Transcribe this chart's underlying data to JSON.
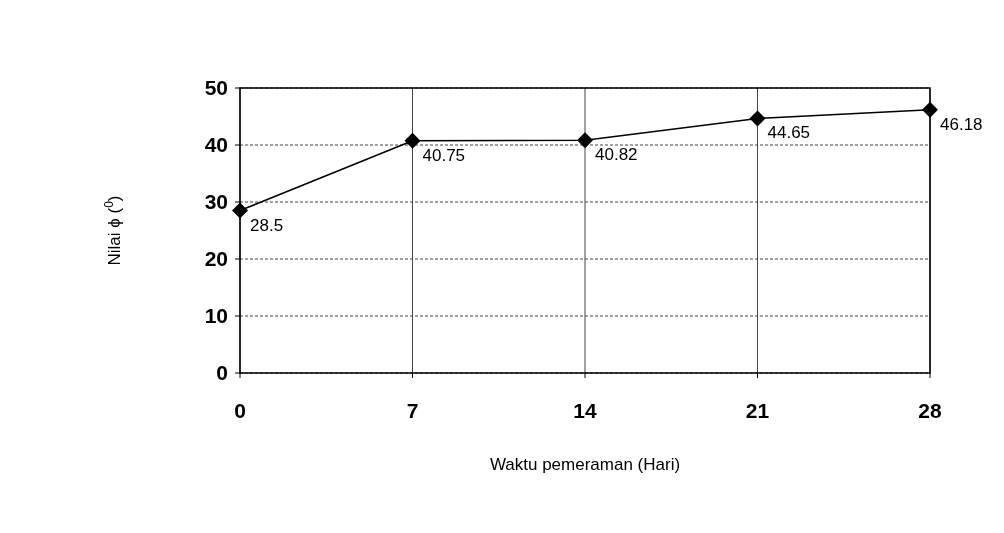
{
  "chart_data": {
    "type": "line",
    "xlabel": "Waktu pemeraman (Hari)",
    "ylabel": "Nilai ϕ ($^{0}$)",
    "x": [
      0,
      7,
      14,
      21,
      28
    ],
    "series": [
      {
        "color": "#000000",
        "values": [
          28.5,
          40.75,
          40.82,
          44.65,
          46.18
        ]
      }
    ],
    "xlim": [
      0,
      28
    ],
    "xticks": [
      0,
      7,
      14,
      21,
      28
    ],
    "ylim": [
      0,
      50
    ],
    "yticks": [
      0,
      10,
      20,
      30,
      40,
      50
    ],
    "grid": true,
    "marker": "diamond",
    "line_style": "solid",
    "data_labels": true
  }
}
